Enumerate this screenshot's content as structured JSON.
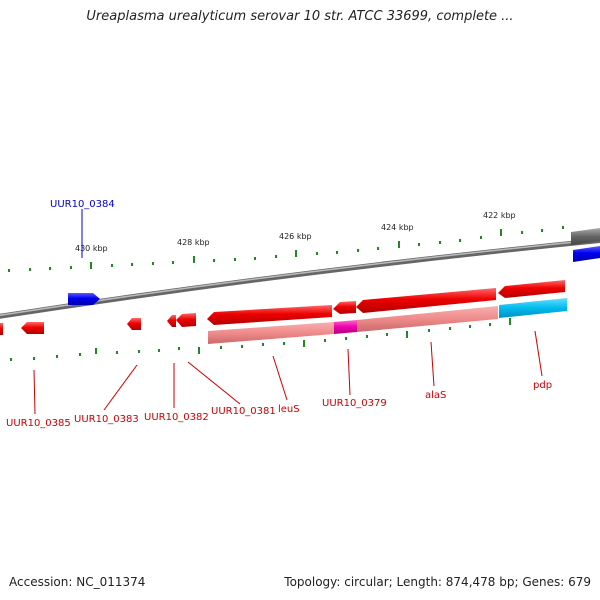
{
  "title": "Ureaplasma urealyticum serovar 10 str. ATCC 33699, complete ...",
  "footer": {
    "accession": "Accession: NC_011374",
    "summary": "Topology: circular; Length: 874,478 bp; Genes: 679"
  },
  "colors": {
    "forward_gene": "#0000ee",
    "reverse_gene": "#ee0000",
    "feature_pink": "#f08a8a",
    "feature_magenta": "#ee00aa",
    "feature_cyan": "#00bbee",
    "backbone": "#888888",
    "tick": "#228822"
  },
  "ruler_labels": [
    "430 kbp",
    "428 kbp",
    "426 kbp",
    "424 kbp",
    "422 kbp"
  ],
  "forward_labels": [
    "UUR10_0384"
  ],
  "reverse_labels": [
    "UUR10_0385",
    "UUR10_0383",
    "UUR10_0382",
    "UUR10_0381",
    "leuS",
    "UUR10_0379",
    "alaS",
    "pdp"
  ]
}
